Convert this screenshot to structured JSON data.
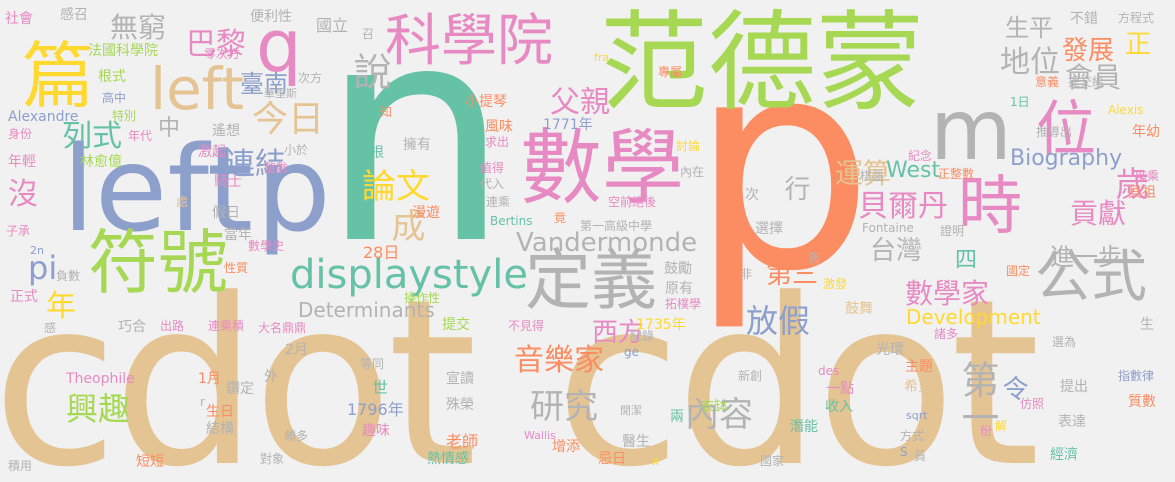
{
  "palette": {
    "blue": "#8d9fcb",
    "green": "#a6d854",
    "orange": "#fc8d62",
    "yellow": "#ffd92f",
    "tan": "#e5c494",
    "teal": "#66c2a5",
    "pink": "#e78ac3",
    "grey": "#b3b3b3"
  },
  "words": [
    {
      "text": "cdot",
      "color": "tan"
    },
    {
      "text": "cdot",
      "color": "tan"
    },
    {
      "text": "n",
      "color": "teal"
    },
    {
      "text": "p",
      "color": "orange"
    },
    {
      "text": "范德蒙",
      "color": "green"
    },
    {
      "text": "left",
      "color": "blue"
    },
    {
      "text": "p",
      "color": "blue"
    },
    {
      "text": "數學",
      "color": "pink"
    },
    {
      "text": "科學院",
      "color": "pink"
    },
    {
      "text": "符號",
      "color": "green"
    },
    {
      "text": "篇",
      "color": "yellow"
    },
    {
      "text": "left",
      "color": "tan"
    },
    {
      "text": "定義",
      "color": "grey"
    },
    {
      "text": "公式",
      "color": "grey"
    },
    {
      "text": "時",
      "color": "pink"
    },
    {
      "text": "q",
      "color": "pink"
    },
    {
      "text": "m",
      "color": "grey"
    },
    {
      "text": "位",
      "color": "pink"
    },
    {
      "text": "displaystyle",
      "color": "teal"
    },
    {
      "text": "Vandermonde",
      "color": "grey"
    },
    {
      "text": "研究",
      "color": "grey"
    },
    {
      "text": "興趣",
      "color": "green"
    },
    {
      "text": "音樂家",
      "color": "orange"
    },
    {
      "text": "內容",
      "color": "grey"
    },
    {
      "text": "今日",
      "color": "tan"
    },
    {
      "text": "論文",
      "color": "yellow"
    },
    {
      "text": "數學家",
      "color": "pink"
    },
    {
      "text": "無窮",
      "color": "grey"
    },
    {
      "text": "巴黎",
      "color": "pink"
    },
    {
      "text": "父親",
      "color": "pink"
    },
    {
      "text": "說",
      "color": "grey"
    },
    {
      "text": "運算",
      "color": "tan"
    },
    {
      "text": "貝爾丹",
      "color": "pink"
    },
    {
      "text": "地位",
      "color": "grey"
    },
    {
      "text": "發展",
      "color": "orange"
    },
    {
      "text": "會員",
      "color": "grey"
    },
    {
      "text": "歲",
      "color": "pink"
    },
    {
      "text": "貢獻",
      "color": "pink"
    },
    {
      "text": "進一步",
      "color": "grey"
    },
    {
      "text": "放假",
      "color": "blue"
    },
    {
      "text": "西方",
      "color": "pink"
    },
    {
      "text": "連結",
      "color": "blue"
    },
    {
      "text": "列式",
      "color": "teal"
    },
    {
      "text": "第三",
      "color": "orange"
    },
    {
      "text": "台灣",
      "color": "grey"
    },
    {
      "text": "臺南",
      "color": "blue"
    },
    {
      "text": "第一",
      "color": "grey"
    },
    {
      "text": "令",
      "color": "blue"
    },
    {
      "text": "成",
      "color": "tan"
    },
    {
      "text": "中",
      "color": "grey"
    },
    {
      "text": "沒",
      "color": "pink"
    },
    {
      "text": "年",
      "color": "yellow"
    },
    {
      "text": "pi",
      "color": "blue"
    },
    {
      "text": "West",
      "color": "teal"
    },
    {
      "text": "Biography",
      "color": "blue"
    },
    {
      "text": "生平",
      "color": "grey"
    },
    {
      "text": "正",
      "color": "yellow"
    },
    {
      "text": "四",
      "color": "teal"
    },
    {
      "text": "Determinants",
      "color": "grey"
    },
    {
      "text": "Development",
      "color": "yellow"
    },
    {
      "text": "1735年",
      "color": "yellow"
    },
    {
      "text": "1796年",
      "color": "blue"
    },
    {
      "text": "28日",
      "color": "orange"
    },
    {
      "text": "行",
      "color": "grey"
    },
    {
      "text": "國立",
      "color": "grey"
    },
    {
      "text": "社會",
      "color": "pink"
    },
    {
      "text": "感召",
      "color": "grey"
    },
    {
      "text": "法國科學院",
      "color": "green"
    },
    {
      "text": "便利性",
      "color": "grey"
    },
    {
      "text": "不錯",
      "color": "grey"
    },
    {
      "text": "方程式",
      "color": "grey"
    },
    {
      "text": "根式",
      "color": "green"
    },
    {
      "text": "零次方",
      "color": "pink"
    },
    {
      "text": "高中",
      "color": "blue"
    },
    {
      "text": "小提琴",
      "color": "orange"
    },
    {
      "text": "Alexandre",
      "color": "blue"
    },
    {
      "text": "特別",
      "color": "green"
    },
    {
      "text": "身份",
      "color": "pink"
    },
    {
      "text": "年代",
      "color": "pink"
    },
    {
      "text": "遙想",
      "color": "grey"
    },
    {
      "text": "1771年",
      "color": "blue"
    },
    {
      "text": "年輕",
      "color": "pink"
    },
    {
      "text": "林愈億",
      "color": "green"
    },
    {
      "text": "激起",
      "color": "pink"
    },
    {
      "text": "小於",
      "color": "grey"
    },
    {
      "text": "騎士",
      "color": "pink"
    },
    {
      "text": "假日",
      "color": "grey"
    },
    {
      "text": "當年",
      "color": "grey"
    },
    {
      "text": "數學史",
      "color": "pink"
    },
    {
      "text": "子承",
      "color": "pink"
    },
    {
      "text": "性質",
      "color": "orange"
    },
    {
      "text": "負數",
      "color": "grey"
    },
    {
      "text": "正式",
      "color": "pink"
    },
    {
      "text": "巧合",
      "color": "grey"
    },
    {
      "text": "出路",
      "color": "pink"
    },
    {
      "text": "連乘積",
      "color": "pink"
    },
    {
      "text": "大名鼎鼎",
      "color": "pink"
    },
    {
      "text": "提交",
      "color": "green"
    },
    {
      "text": "不見得",
      "color": "pink"
    },
    {
      "text": "紀錄",
      "color": "grey"
    },
    {
      "text": "Theophile",
      "color": "pink"
    },
    {
      "text": "1月",
      "color": "orange"
    },
    {
      "text": "鑽定",
      "color": "grey"
    },
    {
      "text": "生日",
      "color": "orange"
    },
    {
      "text": "結構",
      "color": "grey"
    },
    {
      "text": "世",
      "color": "teal"
    },
    {
      "text": "趣味",
      "color": "pink"
    },
    {
      "text": "老師",
      "color": "orange"
    },
    {
      "text": "熱情感",
      "color": "teal"
    },
    {
      "text": "宣讀",
      "color": "grey"
    },
    {
      "text": "殊榮",
      "color": "grey"
    },
    {
      "text": "增添",
      "color": "orange"
    },
    {
      "text": "忌日",
      "color": "orange"
    },
    {
      "text": "醫生",
      "color": "grey"
    },
    {
      "text": "衣缽",
      "color": "green"
    },
    {
      "text": "兩",
      "color": "teal"
    },
    {
      "text": "新創",
      "color": "grey"
    },
    {
      "text": "潛能",
      "color": "teal"
    },
    {
      "text": "收入",
      "color": "teal"
    },
    {
      "text": "一點",
      "color": "pink"
    },
    {
      "text": "國家",
      "color": "grey"
    },
    {
      "text": "經濟",
      "color": "teal"
    },
    {
      "text": "表達",
      "color": "grey"
    },
    {
      "text": "質數",
      "color": "orange"
    },
    {
      "text": "指數律",
      "color": "blue"
    },
    {
      "text": "提出",
      "color": "grey"
    },
    {
      "text": "光環",
      "color": "grey"
    },
    {
      "text": "選為",
      "color": "grey"
    },
    {
      "text": "仿照",
      "color": "pink"
    },
    {
      "text": "希望",
      "color": "tan"
    },
    {
      "text": "主題",
      "color": "orange"
    },
    {
      "text": "鼓舞",
      "color": "tan"
    },
    {
      "text": "鼓勵",
      "color": "grey"
    },
    {
      "text": "激發",
      "color": "yellow"
    },
    {
      "text": "國定",
      "color": "orange"
    },
    {
      "text": "選擇",
      "color": "grey"
    },
    {
      "text": "證明",
      "color": "grey"
    },
    {
      "text": "Fontaine",
      "color": "grey"
    },
    {
      "text": "Bertins",
      "color": "teal"
    },
    {
      "text": "第一高級中學",
      "color": "grey"
    },
    {
      "text": "空前絕後",
      "color": "pink"
    },
    {
      "text": "討論",
      "color": "yellow"
    },
    {
      "text": "值得",
      "color": "pink"
    },
    {
      "text": "代入",
      "color": "grey"
    },
    {
      "text": "連乘",
      "color": "grey"
    },
    {
      "text": "內在",
      "color": "grey"
    },
    {
      "text": "擁有",
      "color": "grey"
    },
    {
      "text": "漫遊",
      "color": "orange"
    },
    {
      "text": "風味",
      "color": "orange"
    },
    {
      "text": "求出",
      "color": "pink"
    },
    {
      "text": "推導出",
      "color": "grey"
    },
    {
      "text": "年幼",
      "color": "orange"
    },
    {
      "text": "紀念",
      "color": "pink"
    },
    {
      "text": "棋盤",
      "color": "grey"
    },
    {
      "text": "正整數",
      "color": "orange"
    },
    {
      "text": "階乘",
      "color": "pink"
    },
    {
      "text": "貝祖",
      "color": "orange"
    },
    {
      "text": "Alexis",
      "color": "yellow"
    },
    {
      "text": "1日",
      "color": "teal"
    },
    {
      "text": "意義",
      "color": "orange"
    },
    {
      "text": "提交給",
      "color": "grey"
    },
    {
      "text": "專屬",
      "color": "orange"
    },
    {
      "text": "華里斯",
      "color": "grey"
    },
    {
      "text": "次方",
      "color": "grey"
    },
    {
      "text": "整數",
      "color": "pink"
    },
    {
      "text": "原有",
      "color": "grey"
    },
    {
      "text": "拓樸學",
      "color": "pink"
    },
    {
      "text": "操作性",
      "color": "green"
    },
    {
      "text": "等同",
      "color": "grey"
    },
    {
      "text": "2月",
      "color": "grey"
    },
    {
      "text": "外",
      "color": "grey"
    },
    {
      "text": "對象",
      "color": "grey"
    },
    {
      "text": "頗多",
      "color": "grey"
    },
    {
      "text": "短短",
      "color": "orange"
    },
    {
      "text": "積用",
      "color": "grey"
    },
    {
      "text": "Wallis",
      "color": "pink"
    },
    {
      "text": "sqrt",
      "color": "blue"
    },
    {
      "text": "des",
      "color": "pink"
    },
    {
      "text": "ge",
      "color": "blue"
    },
    {
      "text": "fra",
      "color": "yellow"
    },
    {
      "text": "2n",
      "color": "blue"
    },
    {
      "text": "方式",
      "color": "grey"
    },
    {
      "text": "解",
      "color": "yellow"
    },
    {
      "text": "份",
      "color": "pink"
    },
    {
      "text": "S",
      "color": "blue"
    },
    {
      "text": "員",
      "color": "grey"
    },
    {
      "text": "生",
      "color": "grey"
    },
    {
      "text": "感",
      "color": "grey"
    },
    {
      "text": "竟",
      "color": "orange"
    },
    {
      "text": "非",
      "color": "grey"
    },
    {
      "text": "知",
      "color": "orange"
    },
    {
      "text": "召",
      "color": "grey"
    },
    {
      "text": "告",
      "color": "grey"
    },
    {
      "text": "根",
      "color": "teal"
    },
    {
      "text": "次",
      "color": "grey"
    },
    {
      "text": "處",
      "color": "tan"
    },
    {
      "text": "x",
      "color": "yellow"
    },
    {
      "text": "r",
      "color": "grey"
    },
    {
      "text": "諸多",
      "color": "pink"
    },
    {
      "text": "閒潔",
      "color": "grey"
    }
  ]
}
